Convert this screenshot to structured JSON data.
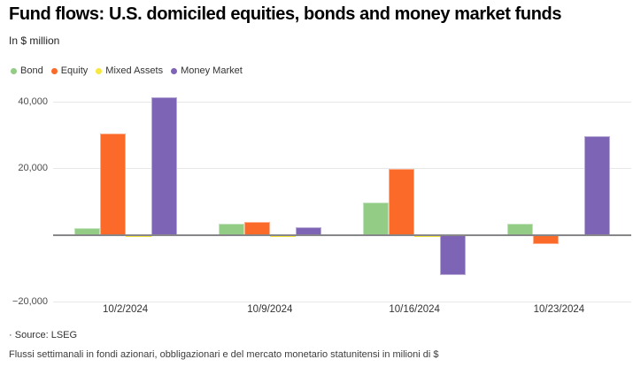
{
  "header": {
    "title": "Fund flows: U.S. domiciled equities, bonds and money market funds",
    "subtitle": "In $ million"
  },
  "footer": {
    "source_bullet": "·",
    "source": "Source: LSEG",
    "note": "Flussi settimanali in fondi azionari, obbligazionari e del mercato monetario statunitensi in milioni di $"
  },
  "colors": {
    "grid": "#e7e7e7",
    "zero_line": "#87878a",
    "y_label": "#4d4d4d",
    "x_label": "#333333",
    "title": "#000000"
  },
  "chart_data": {
    "type": "bar",
    "title": "Fund flows: U.S. domiciled equities, bonds and money market funds",
    "subtitle": "In $ million",
    "categories": [
      "10/2/2024",
      "10/9/2024",
      "10/16/2024",
      "10/23/2024"
    ],
    "series": [
      {
        "name": "Bond",
        "color": "#93cc85",
        "values": [
          2100,
          3400,
          9700,
          3400
        ]
      },
      {
        "name": "Equity",
        "color": "#fb6a28",
        "values": [
          30600,
          3800,
          20000,
          -2600
        ]
      },
      {
        "name": "Mixed Assets",
        "color": "#f8e73e",
        "values": [
          -600,
          -500,
          -500,
          -400
        ]
      },
      {
        "name": "Money Market",
        "color": "#7e64b5",
        "values": [
          41300,
          2400,
          -12000,
          29800
        ]
      }
    ],
    "yticks": [
      {
        "label": "40,000",
        "value": 40000
      },
      {
        "label": "20,000",
        "value": 20000
      },
      {
        "label": "−20,000",
        "value": -20000
      }
    ],
    "ylim": [
      -20000,
      43000
    ],
    "zero_line": 0,
    "xlabel": "",
    "ylabel": "In $ million",
    "grid": "horizontal",
    "legend_position": "top-left"
  }
}
